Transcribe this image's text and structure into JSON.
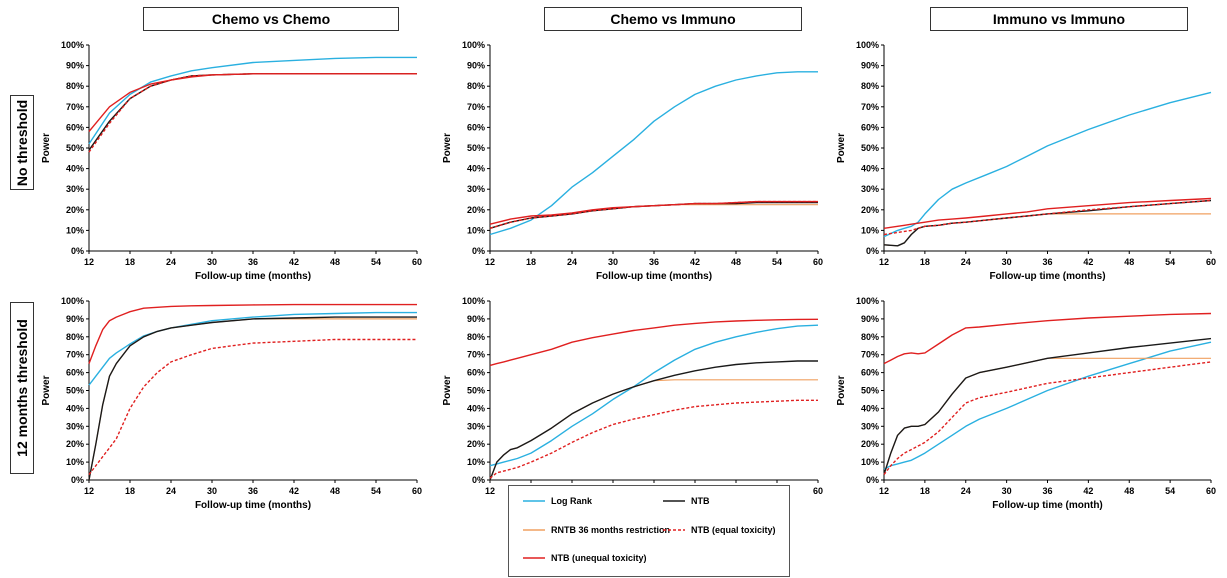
{
  "column_titles": [
    "Chemo vs Chemo",
    "Chemo vs Immuno",
    "Immuno vs Immuno"
  ],
  "row_titles": [
    "No threshold",
    "12 months threshold"
  ],
  "colors": {
    "log_rank": "#2ab0e0",
    "ntb": "#1a1a1a",
    "rntb": "#f0a060",
    "ntb_equal": "#e02020",
    "ntb_unequal": "#e02020"
  },
  "legend": [
    {
      "key": "log_rank",
      "label": "Log Rank",
      "dash": false
    },
    {
      "key": "ntb",
      "label": "NTB",
      "dash": false
    },
    {
      "key": "rntb",
      "label": "RNTB 36 months restriction",
      "dash": false
    },
    {
      "key": "ntb_equal",
      "label": "NTB (equal toxicity)",
      "dash": true
    },
    {
      "key": "ntb_unequal",
      "label": "NTB (unequal toxicity)",
      "dash": false
    }
  ],
  "chart_data": [
    {
      "type": "line",
      "panel": "Chemo vs Chemo / No threshold",
      "xlabel": "Follow-up time (months)",
      "ylabel": "Power",
      "xlim": [
        12,
        60
      ],
      "ylim": [
        0,
        100
      ],
      "xticks": [
        "12",
        "18",
        "24",
        "30",
        "36",
        "42",
        "48",
        "54",
        "60"
      ],
      "yticks": [
        "0%",
        "10%",
        "20%",
        "30%",
        "40%",
        "50%",
        "60%",
        "70%",
        "80%",
        "90%",
        "100%"
      ],
      "x": [
        12,
        15,
        18,
        21,
        24,
        27,
        30,
        36,
        42,
        48,
        54,
        60
      ],
      "series": [
        {
          "name": "Log Rank",
          "key": "log_rank",
          "values": [
            52,
            67,
            76,
            82,
            85,
            87.5,
            89,
            91.5,
            92.5,
            93.5,
            94,
            94
          ]
        },
        {
          "name": "NTB",
          "key": "ntb",
          "values": [
            49,
            63,
            74,
            80,
            83,
            85,
            85.5,
            86,
            86,
            86,
            86,
            86
          ]
        },
        {
          "name": "RNTB 36 months restriction",
          "key": "rntb",
          "values": [
            49,
            63,
            74,
            80,
            83,
            85,
            85.5,
            86,
            86,
            86,
            86,
            86
          ]
        },
        {
          "name": "NTB (equal toxicity)",
          "key": "ntb_equal",
          "values": [
            48,
            62,
            74,
            80,
            83,
            85,
            85.5,
            86,
            86,
            86,
            86,
            86
          ]
        },
        {
          "name": "NTB (unequal toxicity)",
          "key": "ntb_unequal",
          "values": [
            58,
            70,
            77,
            81,
            83,
            84.5,
            85.5,
            86,
            86,
            86,
            86,
            86
          ]
        }
      ]
    },
    {
      "type": "line",
      "panel": "Chemo vs Immuno / No threshold",
      "xlabel": "Follow-up time (months)",
      "ylabel": "Power",
      "xlim": [
        12,
        60
      ],
      "ylim": [
        0,
        100
      ],
      "xticks": [
        "12",
        "18",
        "24",
        "30",
        "36",
        "42",
        "48",
        "54",
        "60"
      ],
      "yticks": [
        "0%",
        "10%",
        "20%",
        "30%",
        "40%",
        "50%",
        "60%",
        "70%",
        "80%",
        "90%",
        "100%"
      ],
      "x": [
        12,
        15,
        18,
        21,
        24,
        27,
        30,
        33,
        36,
        39,
        42,
        45,
        48,
        51,
        54,
        57,
        60
      ],
      "series": [
        {
          "name": "Log Rank",
          "key": "log_rank",
          "values": [
            8,
            11,
            15,
            22,
            31,
            38,
            46,
            54,
            63,
            70,
            76,
            80,
            83,
            85,
            86.5,
            87,
            87
          ]
        },
        {
          "name": "NTB",
          "key": "ntb",
          "values": [
            11,
            14,
            16,
            17,
            18,
            19.5,
            20.5,
            21.5,
            22,
            22.5,
            23,
            23,
            23,
            23.5,
            23.5,
            23.5,
            23.5
          ]
        },
        {
          "name": "RNTB 36 months restriction",
          "key": "rntb",
          "values": [
            11,
            14,
            16,
            17,
            18,
            19.5,
            20.5,
            21.5,
            22,
            22.5,
            22.5,
            22.5,
            22.5,
            22.5,
            22.5,
            22.5,
            22.5
          ]
        },
        {
          "name": "NTB (equal toxicity)",
          "key": "ntb_equal",
          "values": [
            11,
            14,
            16,
            17,
            18,
            19.5,
            20.5,
            21.5,
            22,
            22.5,
            23,
            23,
            23.5,
            24,
            24,
            24,
            24
          ]
        },
        {
          "name": "NTB (unequal toxicity)",
          "key": "ntb_unequal",
          "values": [
            13,
            15.5,
            17,
            17.5,
            18.5,
            20,
            21,
            21.5,
            22,
            22.5,
            23,
            23,
            23.5,
            24,
            24,
            24,
            24
          ]
        }
      ]
    },
    {
      "type": "line",
      "panel": "Immuno vs Immuno / No threshold",
      "xlabel": "Follow-up time (months)",
      "ylabel": "Power",
      "xlim": [
        12,
        60
      ],
      "ylim": [
        0,
        100
      ],
      "xticks": [
        "12",
        "18",
        "24",
        "30",
        "36",
        "42",
        "48",
        "54",
        "60"
      ],
      "yticks": [
        "0%",
        "10%",
        "20%",
        "30%",
        "40%",
        "50%",
        "60%",
        "70%",
        "80%",
        "90%",
        "100%"
      ],
      "x": [
        12,
        14,
        15,
        16,
        17,
        18,
        20,
        22,
        24,
        27,
        30,
        33,
        36,
        42,
        48,
        54,
        60
      ],
      "series": [
        {
          "name": "Log Rank",
          "key": "log_rank",
          "values": [
            7,
            10,
            11,
            12,
            14,
            18,
            25,
            30,
            33,
            37,
            41,
            46,
            51,
            59,
            66,
            72,
            77
          ]
        },
        {
          "name": "NTB",
          "key": "ntb",
          "values": [
            3,
            2.5,
            4,
            8,
            11,
            12,
            12.5,
            13.5,
            14,
            15,
            16,
            17,
            18,
            19.5,
            21.5,
            23,
            24.5
          ]
        },
        {
          "name": "RNTB 36 months restriction",
          "key": "rntb",
          "values": [
            3,
            2.5,
            4,
            8,
            11,
            12,
            12.5,
            13.5,
            14,
            15,
            16,
            17,
            18,
            18,
            18,
            18,
            18
          ]
        },
        {
          "name": "NTB (equal toxicity)",
          "key": "ntb_equal",
          "values": [
            8,
            9,
            9.5,
            10,
            11,
            12,
            12.5,
            13.5,
            14,
            15,
            16,
            17,
            18,
            20,
            21.5,
            23,
            24.5
          ]
        },
        {
          "name": "NTB (unequal toxicity)",
          "key": "ntb_unequal",
          "values": [
            11,
            12,
            12.5,
            13,
            13.5,
            14,
            15,
            15.5,
            16,
            17,
            18,
            19,
            20.5,
            22,
            23.5,
            24.5,
            25.5
          ]
        }
      ]
    },
    {
      "type": "line",
      "panel": "Chemo vs Chemo / 12 months threshold",
      "xlabel": "Follow-up time (months)",
      "ylabel": "Power",
      "xlim": [
        12,
        60
      ],
      "ylim": [
        0,
        100
      ],
      "xticks": [
        "12",
        "18",
        "24",
        "30",
        "36",
        "42",
        "48",
        "54",
        "60"
      ],
      "yticks": [
        "0%",
        "10%",
        "20%",
        "30%",
        "40%",
        "50%",
        "60%",
        "70%",
        "80%",
        "90%",
        "100%"
      ],
      "x": [
        12,
        13,
        14,
        15,
        16,
        18,
        20,
        22,
        24,
        27,
        30,
        36,
        42,
        48,
        54,
        60
      ],
      "series": [
        {
          "name": "Log Rank",
          "key": "log_rank",
          "values": [
            53,
            58,
            63,
            68,
            71,
            76,
            80.5,
            83,
            85,
            87,
            89,
            91,
            92.5,
            93,
            93.5,
            93.5
          ]
        },
        {
          "name": "NTB",
          "key": "ntb",
          "values": [
            0,
            20,
            42,
            58,
            65,
            75,
            80,
            83,
            85,
            86.5,
            88,
            90,
            90.5,
            91,
            91,
            91
          ]
        },
        {
          "name": "RNTB 36 months restriction",
          "key": "rntb",
          "values": [
            0,
            20,
            42,
            58,
            65,
            75,
            80,
            83,
            85,
            86.5,
            88,
            90,
            90,
            90,
            90,
            90
          ]
        },
        {
          "name": "NTB (equal toxicity)",
          "key": "ntb_equal",
          "values": [
            3,
            8,
            13,
            18,
            23,
            40,
            52,
            60,
            66,
            70,
            73.5,
            76.5,
            77.5,
            78.5,
            78.5,
            78.5
          ]
        },
        {
          "name": "NTB (unequal toxicity)",
          "key": "ntb_unequal",
          "values": [
            65,
            75,
            84,
            89,
            91,
            94,
            96,
            96.5,
            97,
            97.3,
            97.5,
            97.8,
            98,
            98,
            98,
            98
          ]
        }
      ]
    },
    {
      "type": "line",
      "panel": "Chemo vs Immuno / 12 months threshold",
      "xlabel": "Follow-up time (months)",
      "ylabel": "Power",
      "xlim": [
        12,
        60
      ],
      "ylim": [
        0,
        100
      ],
      "xticks": [
        "12",
        "18",
        "24",
        "30",
        "36",
        "42",
        "48",
        "54",
        "60"
      ],
      "yticks": [
        "0%",
        "10%",
        "20%",
        "30%",
        "40%",
        "50%",
        "60%",
        "70%",
        "80%",
        "90%",
        "100%"
      ],
      "x": [
        12,
        13,
        14,
        15,
        16,
        18,
        21,
        24,
        27,
        30,
        33,
        36,
        39,
        42,
        45,
        48,
        51,
        54,
        57,
        60
      ],
      "series": [
        {
          "name": "Log Rank",
          "key": "log_rank",
          "values": [
            8,
            9,
            10,
            11,
            12,
            15,
            22,
            30,
            37,
            45,
            52,
            60,
            67,
            73,
            77,
            80,
            82.5,
            84.5,
            86,
            86.5
          ]
        },
        {
          "name": "NTB",
          "key": "ntb",
          "values": [
            0,
            10,
            14,
            17,
            18,
            22,
            29,
            37,
            43,
            48,
            52,
            55.5,
            58.5,
            61,
            63,
            64.5,
            65.5,
            66,
            66.5,
            66.5
          ]
        },
        {
          "name": "RNTB 36 months restriction",
          "key": "rntb",
          "values": [
            0,
            10,
            14,
            17,
            18,
            22,
            29,
            37,
            43,
            48,
            52,
            55.5,
            56,
            56,
            56,
            56,
            56,
            56,
            56,
            56
          ]
        },
        {
          "name": "NTB (equal toxicity)",
          "key": "ntb_equal",
          "values": [
            1,
            4,
            5,
            6,
            7,
            10,
            15,
            21,
            26.5,
            31,
            34,
            36.5,
            39,
            41,
            42,
            43,
            43.5,
            44,
            44.5,
            44.5
          ]
        },
        {
          "name": "NTB (unequal toxicity)",
          "key": "ntb_unequal",
          "values": [
            64,
            65,
            66,
            67,
            68,
            70,
            73,
            77,
            79.5,
            81.5,
            83.5,
            85,
            86.5,
            87.5,
            88.3,
            88.8,
            89.2,
            89.5,
            89.7,
            89.8
          ]
        }
      ]
    },
    {
      "type": "line",
      "panel": "Immuno vs Immuno / 12 months threshold",
      "xlabel": "Follow-up time (month)",
      "ylabel": "Power",
      "xlim": [
        12,
        60
      ],
      "ylim": [
        0,
        100
      ],
      "xticks": [
        "12",
        "18",
        "24",
        "30",
        "36",
        "42",
        "48",
        "54",
        "60"
      ],
      "yticks": [
        "0%",
        "10%",
        "20%",
        "30%",
        "40%",
        "50%",
        "60%",
        "70%",
        "80%",
        "90%",
        "100%"
      ],
      "x": [
        12,
        13,
        14,
        15,
        16,
        17,
        18,
        20,
        22,
        24,
        26,
        30,
        36,
        42,
        48,
        54,
        60
      ],
      "series": [
        {
          "name": "Log Rank",
          "key": "log_rank",
          "values": [
            6,
            8,
            9,
            10,
            11,
            13,
            15,
            20,
            25,
            30,
            34,
            40,
            50,
            58,
            65,
            72,
            77
          ]
        },
        {
          "name": "NTB",
          "key": "ntb",
          "values": [
            3,
            15,
            25,
            29,
            30,
            30,
            31,
            38,
            48,
            57,
            60,
            63,
            68,
            71,
            74,
            76.5,
            79
          ]
        },
        {
          "name": "RNTB 36 months restriction",
          "key": "rntb",
          "values": [
            3,
            15,
            25,
            29,
            30,
            30,
            31,
            38,
            48,
            57,
            60,
            63,
            68,
            68,
            68,
            68,
            68
          ]
        },
        {
          "name": "NTB (equal toxicity)",
          "key": "ntb_equal",
          "values": [
            3,
            8,
            12,
            15,
            17,
            19,
            21,
            27,
            35,
            43,
            46,
            49,
            54,
            57,
            60,
            63,
            66
          ]
        },
        {
          "name": "NTB (unequal toxicity)",
          "key": "ntb_unequal",
          "values": [
            65,
            67,
            69,
            70.5,
            71,
            70.5,
            71,
            76,
            81,
            85,
            85.5,
            87,
            89,
            90.5,
            91.5,
            92.5,
            93
          ]
        }
      ]
    }
  ]
}
